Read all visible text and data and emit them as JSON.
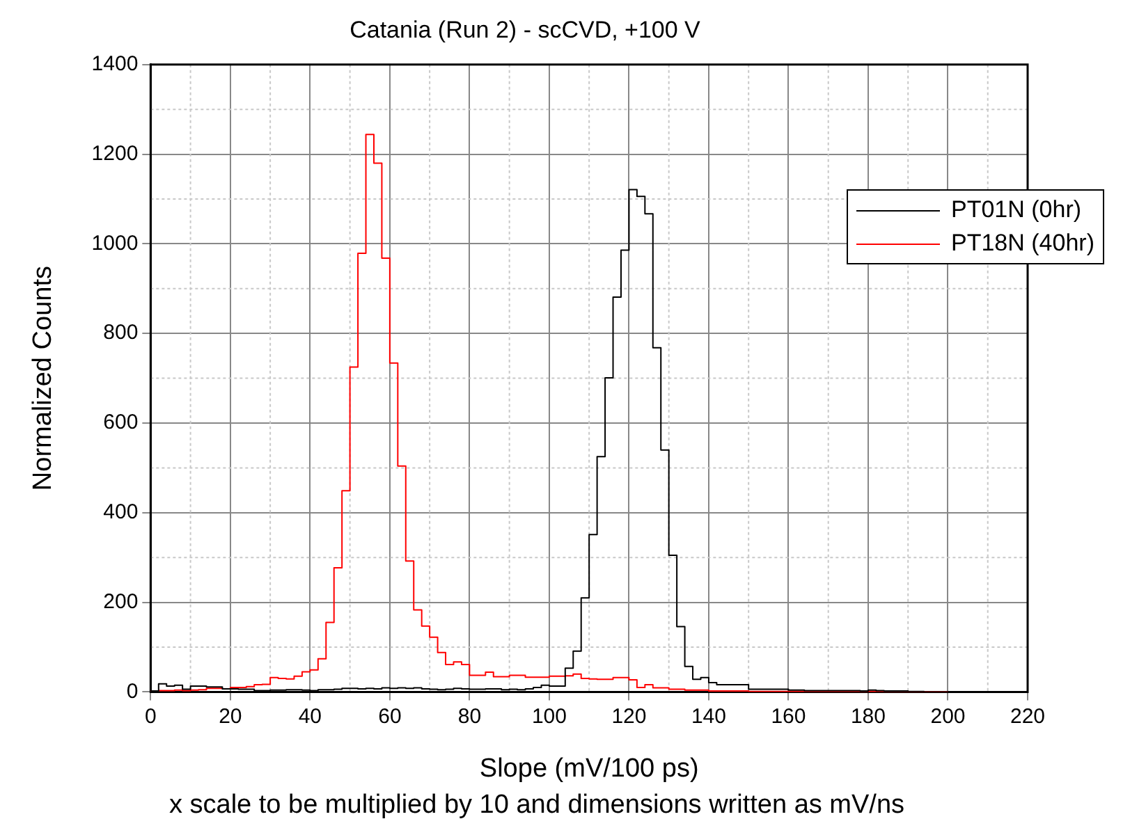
{
  "chart_data": {
    "type": "histogram",
    "title": "Catania (Run 2) - scCVD, +100 V",
    "xlabel": "Slope (mV/100 ps)",
    "ylabel": "Normalized Counts",
    "annotations": [
      "x scale to be multiplied by 10 and dimensions written as mV/ns"
    ],
    "bins": [
      0,
      2,
      4,
      6,
      8,
      10,
      12,
      14,
      16,
      18,
      20,
      22,
      24,
      26,
      28,
      30,
      32,
      34,
      36,
      38,
      40,
      42,
      44,
      46,
      48,
      50,
      52,
      54,
      56,
      58,
      60,
      62,
      64,
      66,
      68,
      70,
      72,
      74,
      76,
      78,
      80,
      82,
      84,
      86,
      88,
      90,
      92,
      94,
      96,
      98,
      100,
      102,
      104,
      106,
      108,
      110,
      112,
      114,
      116,
      118,
      120,
      122,
      124,
      126,
      128,
      130,
      132,
      134,
      136,
      138,
      140,
      142,
      144,
      146,
      148,
      150,
      152,
      154,
      156,
      158,
      160,
      162,
      164,
      166,
      168,
      170,
      172,
      174,
      176,
      178,
      180,
      182,
      184,
      186,
      188,
      190,
      192,
      194,
      196,
      198,
      200
    ],
    "series": [
      {
        "name": "PT01N (0hr)",
        "color": "#000000",
        "values": [
          2,
          18,
          13,
          15,
          6,
          13,
          13,
          11,
          11,
          7,
          7,
          6,
          6,
          3,
          3,
          4,
          4,
          5,
          5,
          4,
          3,
          5,
          5,
          6,
          8,
          8,
          7,
          8,
          7,
          9,
          8,
          9,
          8,
          9,
          7,
          6,
          5,
          6,
          8,
          7,
          6,
          6,
          7,
          7,
          5,
          6,
          5,
          7,
          10,
          15,
          13,
          13,
          53,
          91,
          210,
          351,
          525,
          701,
          881,
          986,
          1121,
          1106,
          1067,
          768,
          540,
          305,
          146,
          57,
          28,
          32,
          21,
          16,
          16,
          16,
          16,
          6,
          6,
          6,
          6,
          6,
          4,
          4,
          3,
          3,
          3,
          3,
          3,
          3,
          3,
          2,
          4,
          3,
          2,
          2,
          2,
          1,
          1,
          0,
          0,
          0
        ]
      },
      {
        "name": "PT18N (40hr)",
        "color": "#ff0000",
        "values": [
          2,
          3,
          3,
          4,
          3,
          4,
          5,
          8,
          8,
          7,
          10,
          10,
          12,
          16,
          17,
          32,
          30,
          29,
          35,
          45,
          49,
          74,
          155,
          277,
          449,
          725,
          979,
          1244,
          1180,
          968,
          734,
          504,
          292,
          183,
          147,
          122,
          88,
          61,
          67,
          61,
          37,
          37,
          44,
          34,
          34,
          37,
          37,
          33,
          33,
          33,
          35,
          35,
          36,
          40,
          30,
          29,
          28,
          28,
          32,
          32,
          27,
          10,
          16,
          9,
          9,
          6,
          6,
          4,
          4,
          4,
          2,
          2,
          2,
          2,
          2,
          1,
          1,
          1,
          1,
          1,
          1,
          1,
          1,
          1,
          1,
          1,
          1,
          1,
          1,
          1,
          1,
          1,
          1,
          1,
          1,
          0,
          0,
          0,
          0,
          0
        ]
      }
    ],
    "xlim": [
      0,
      220
    ],
    "xticks": [
      0,
      20,
      40,
      60,
      80,
      100,
      120,
      140,
      160,
      180,
      200,
      220
    ],
    "ylim": [
      0,
      1400
    ],
    "yticks": [
      0,
      200,
      400,
      600,
      800,
      1000,
      1200,
      1400
    ],
    "grid": true,
    "legend": "top right"
  }
}
